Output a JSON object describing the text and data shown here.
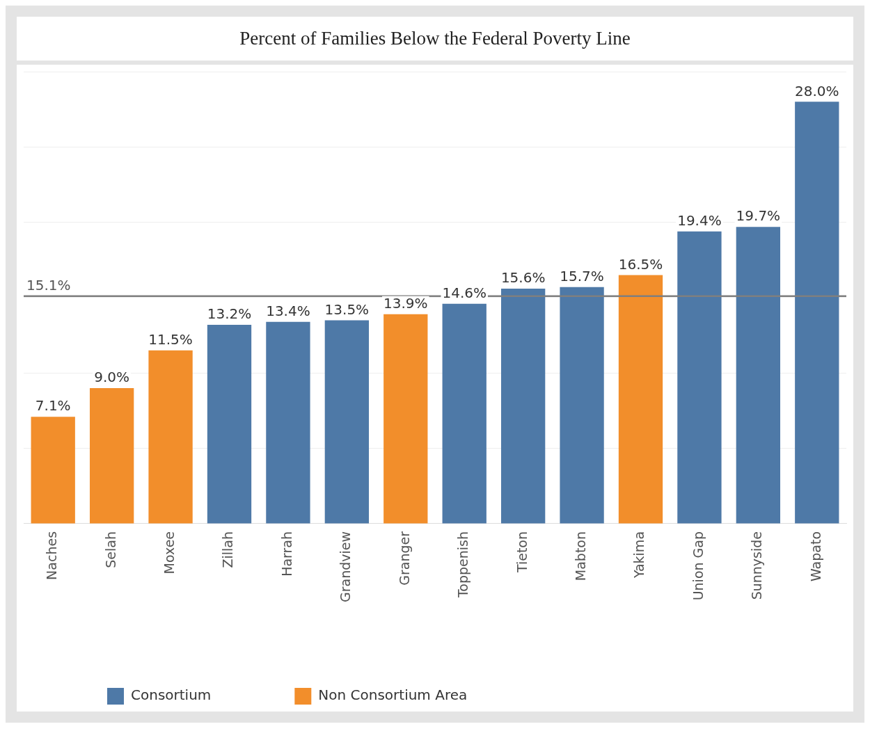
{
  "chart_data": {
    "type": "bar",
    "title": "Percent of Families Below the Federal Poverty Line",
    "categories": [
      "Naches",
      "Selah",
      "Moxee",
      "Zillah",
      "Harrah",
      "Grandview",
      "Granger",
      "Toppenish",
      "Tieton",
      "Mabton",
      "Yakima",
      "Union Gap",
      "Sunnyside",
      "Wapato"
    ],
    "stacked": true,
    "series": [
      {
        "name": "Consortium",
        "color": "#4e79a7",
        "values": [
          null,
          null,
          null,
          13.2,
          13.4,
          13.5,
          null,
          14.6,
          15.6,
          15.7,
          null,
          19.4,
          19.7,
          28.0
        ],
        "value_labels": [
          null,
          null,
          null,
          "13.2%",
          "13.4%",
          "13.5%",
          null,
          "14.6%",
          "15.6%",
          "15.7%",
          null,
          "19.4%",
          "19.7%",
          "28.0%"
        ]
      },
      {
        "name": "Non Consortium Area",
        "color": "#f28e2b",
        "values": [
          7.1,
          9.0,
          11.5,
          null,
          null,
          null,
          13.9,
          null,
          null,
          null,
          16.5,
          null,
          null,
          null
        ],
        "value_labels": [
          "7.1%",
          "9.0%",
          "11.5%",
          null,
          null,
          null,
          "13.9%",
          null,
          null,
          null,
          "16.5%",
          null,
          null,
          null
        ]
      }
    ],
    "ylim": [
      0,
      30
    ],
    "yticks": [
      {
        "value": 0,
        "label": null
      },
      {
        "value": 5,
        "label": null
      },
      {
        "value": 10,
        "label": null
      },
      {
        "value": 15,
        "label": null
      },
      {
        "value": 20,
        "label": null
      },
      {
        "value": 25,
        "label": null
      },
      {
        "value": 30,
        "label": null
      }
    ],
    "tick_labels": "x",
    "grid": "y",
    "legend": "bottom left",
    "ref_lines": [
      {
        "axis": "y",
        "value": 15.1,
        "label": "15.1%",
        "color": "#7f7f7f"
      }
    ]
  }
}
